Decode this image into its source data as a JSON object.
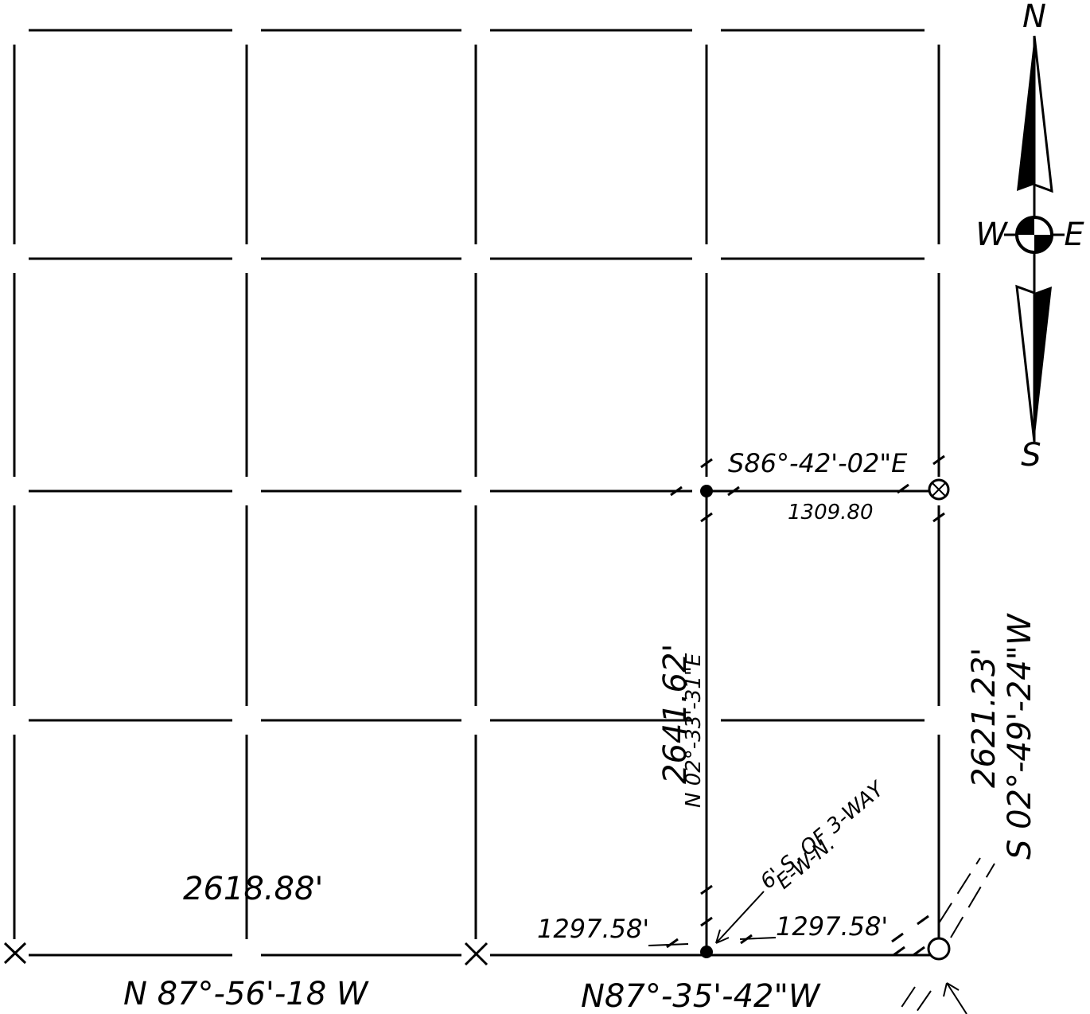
{
  "compass": {
    "north": "N",
    "west": "W",
    "east": "E",
    "south": "S"
  },
  "labels": {
    "top_bearing": "S86°-42'-02\"E",
    "top_distance": "1309.80",
    "center_distance": "2641.62'",
    "center_bearing": "N 02°-33'-31\"E",
    "right_distance": "2621.23'",
    "right_bearing": "S 02°-49'-24\"W",
    "note_line1": "6' S. OF 3-WAY",
    "note_line2": "E-W-N.",
    "bottom_left_distance": "2618.88'",
    "bottom_mid_distance_left": "1297.58'",
    "bottom_mid_distance_right": "1297.58'",
    "bottom_left_bearing": "N 87°-56'-18 W",
    "bottom_right_bearing": "N87°-35'-42\"W"
  }
}
